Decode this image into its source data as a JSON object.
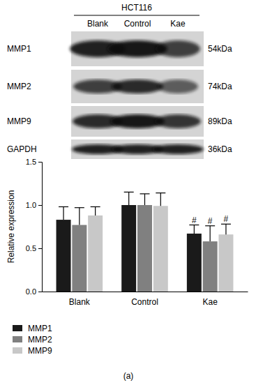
{
  "blot": {
    "cell_line": "HCT116",
    "lanes": [
      "Blank",
      "Control",
      "Kae"
    ],
    "rows": [
      {
        "protein": "MMP1",
        "size": "54kDa"
      },
      {
        "protein": "MMP2",
        "size": "74kDa"
      },
      {
        "protein": "MMP9",
        "size": "89kDa"
      },
      {
        "protein": "GAPDH",
        "size": "36kDa"
      }
    ]
  },
  "chart_data": {
    "type": "bar",
    "y_label": "Relative expression",
    "caption": "(a)",
    "categories": [
      "Blank",
      "Control",
      "Kae"
    ],
    "series": [
      {
        "name": "MMP1",
        "color": "#1a1a1a",
        "values": [
          0.83,
          1.0,
          0.67
        ],
        "errors": [
          0.15,
          0.15,
          0.1
        ]
      },
      {
        "name": "MMP2",
        "color": "#808080",
        "values": [
          0.77,
          1.0,
          0.58
        ],
        "errors": [
          0.2,
          0.13,
          0.18
        ]
      },
      {
        "name": "MMP9",
        "color": "#c8c8c8",
        "values": [
          0.88,
          0.99,
          0.66
        ],
        "errors": [
          0.1,
          0.15,
          0.12
        ]
      }
    ],
    "annotations": [
      {
        "text": "#",
        "series": 0,
        "category": 2
      },
      {
        "text": "#",
        "series": 1,
        "category": 2
      },
      {
        "text": "#",
        "series": 2,
        "category": 2
      }
    ],
    "ylim": [
      0,
      1.5
    ],
    "yticks": [
      {
        "value": 0,
        "label": "0.0"
      },
      {
        "value": 0.5,
        "label": "0.5"
      },
      {
        "value": 1,
        "label": "1.0"
      },
      {
        "value": 1.5,
        "label": "1.5"
      }
    ],
    "legend": "bottom-left"
  }
}
